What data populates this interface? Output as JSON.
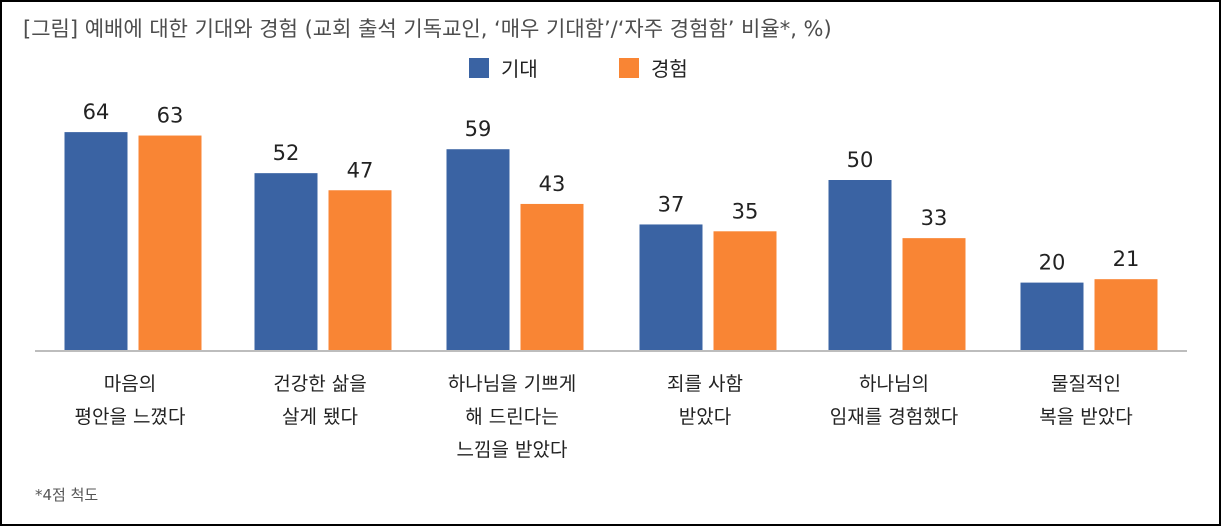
{
  "chart_data": {
    "type": "bar",
    "title": "[그림] 예배에 대한 기대와 경험 (교회 출석 기독교인, ‘매우 기대함’/‘자주 경험함’ 비율*, %)",
    "categories": [
      [
        "마음의",
        "평안을 느꼈다"
      ],
      [
        "건강한 삶을",
        "살게 됐다"
      ],
      [
        "하나님을 기쁘게",
        "해 드린다는",
        "느낌을 받았다"
      ],
      [
        "죄를 사함",
        "받았다"
      ],
      [
        "하나님의",
        "임재를 경험했다"
      ],
      [
        "물질적인",
        "복을 받았다"
      ]
    ],
    "series": [
      {
        "name": "기대",
        "color": "#3a63a3",
        "values": [
          64,
          52,
          59,
          37,
          50,
          20
        ]
      },
      {
        "name": "경험",
        "color": "#f98534",
        "values": [
          63,
          47,
          43,
          35,
          33,
          21
        ]
      }
    ],
    "ylim": [
      0,
      64
    ],
    "grid": false,
    "legend_position": "top-center",
    "note": "*4점 척도"
  }
}
